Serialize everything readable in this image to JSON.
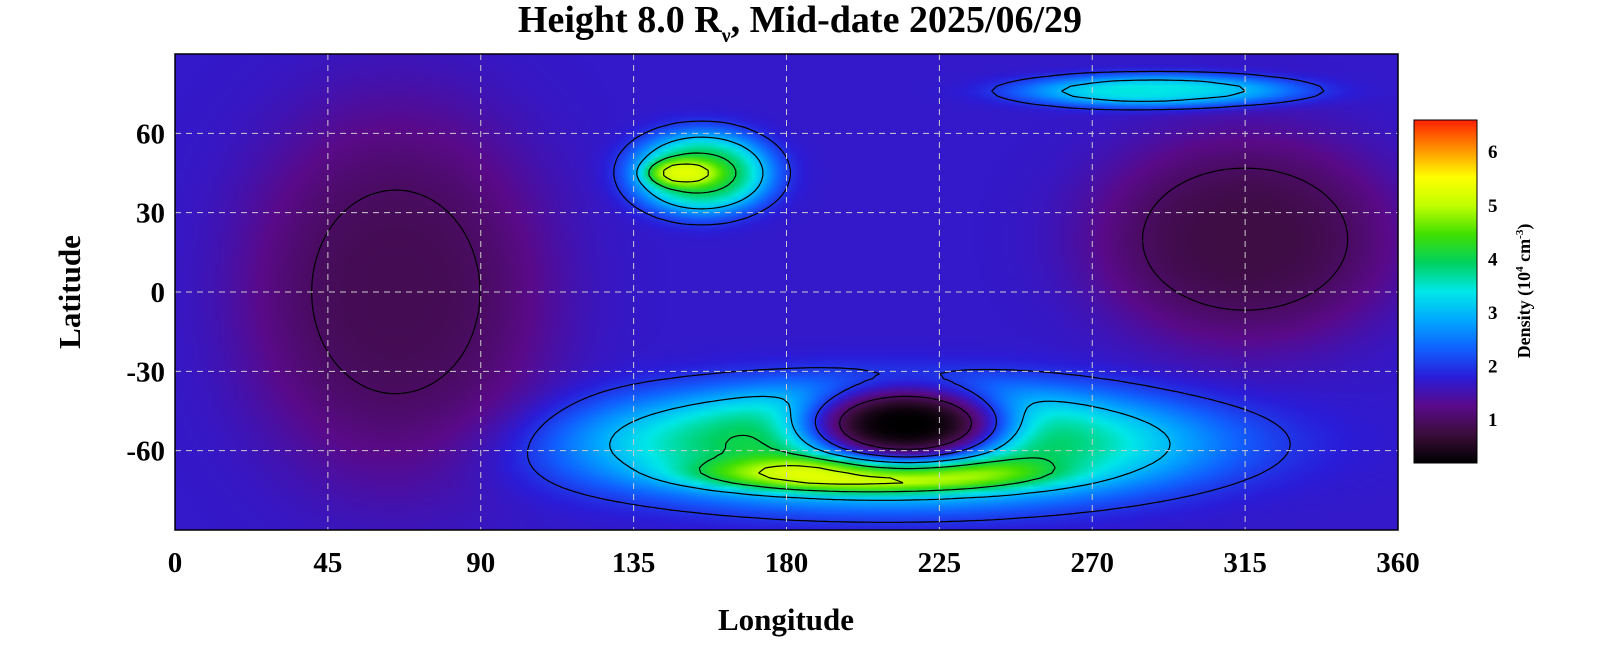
{
  "chart_data": {
    "type": "heatmap",
    "title_main": "Height 8.0 R",
    "title_sub": "ν",
    "title_rest": ", Mid-date 2025/06/29",
    "xlabel": "Longitude",
    "ylabel": "Latitude",
    "xlim": [
      0,
      360
    ],
    "ylim": [
      -90,
      90
    ],
    "x_ticks": [
      0,
      45,
      90,
      135,
      180,
      225,
      270,
      315,
      360
    ],
    "y_ticks": [
      60,
      30,
      0,
      -30,
      -60
    ],
    "y_tick_labels": [
      "60",
      "30",
      "0",
      "-30",
      "-60"
    ],
    "grid": true,
    "colorbar": {
      "label_prefix": "Density (10",
      "label_exp": "4",
      "label_mid": " cm",
      "label_exp2": "-3",
      "label_suffix": ")",
      "range": [
        0.2,
        6.6
      ],
      "ticks": [
        1,
        2,
        3,
        4,
        5,
        6
      ],
      "colors": [
        "#000000",
        "#3a0d3a",
        "#5a0a8a",
        "#2a1cd8",
        "#1060ff",
        "#00a8ff",
        "#00e8e8",
        "#00d060",
        "#40e000",
        "#c0ff00",
        "#ffff00",
        "#ff9000",
        "#ff2000"
      ]
    },
    "regions": [
      {
        "name": "high-density band south",
        "lon": [
          120,
          300
        ],
        "lat": [
          -80,
          -35
        ],
        "density": 4.3
      },
      {
        "name": "southern peak",
        "lon": [
          160,
          250
        ],
        "lat": [
          -75,
          -62
        ],
        "density": 5.5
      },
      {
        "name": "mid-latitude blob",
        "lon": [
          135,
          175
        ],
        "lat": [
          30,
          60
        ],
        "density": 4.2
      },
      {
        "name": "mid-latitude peak",
        "lon": [
          140,
          160
        ],
        "lat": [
          40,
          50
        ],
        "density": 5.3
      },
      {
        "name": "northern streak",
        "lon": [
          250,
          330
        ],
        "lat": [
          70,
          82
        ],
        "density": 3.5
      },
      {
        "name": "low-density hole",
        "lon": [
          185,
          245
        ],
        "lat": [
          -65,
          -35
        ],
        "density": 0.2
      },
      {
        "name": "low region west",
        "lon": [
          20,
          110
        ],
        "lat": [
          -70,
          70
        ],
        "density": 0.9
      },
      {
        "name": "low region east",
        "lon": [
          270,
          360
        ],
        "lat": [
          -20,
          60
        ],
        "density": 0.8
      }
    ]
  }
}
